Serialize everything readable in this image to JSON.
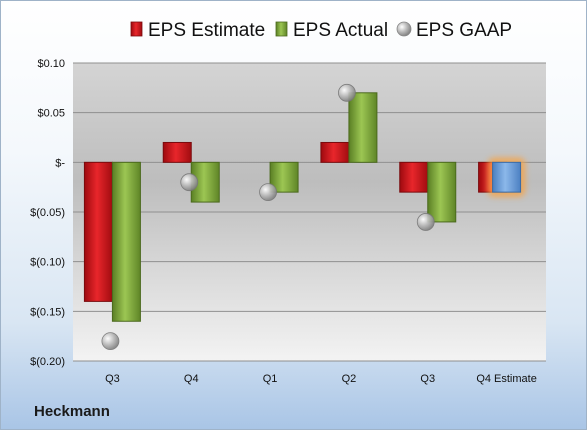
{
  "company": "Heckmann",
  "chart_data": {
    "type": "bar",
    "categories": [
      "Q3",
      "Q4",
      "Q1",
      "Q2",
      "Q3",
      "Q4 Estimate"
    ],
    "series": [
      {
        "name": "EPS Estimate",
        "values": [
          -0.14,
          0.02,
          null,
          0.02,
          -0.03,
          -0.03
        ],
        "color": "#d7161c"
      },
      {
        "name": "EPS Actual",
        "values": [
          -0.16,
          -0.04,
          -0.03,
          0.07,
          -0.06,
          null
        ],
        "color": "#7aa63a"
      },
      {
        "name": "EPS GAAP",
        "type": "scatter",
        "values": [
          -0.18,
          -0.02,
          -0.03,
          0.07,
          -0.06,
          null
        ],
        "color": "#a8a8a8"
      }
    ],
    "estimate_highlight": {
      "category": "Q4 Estimate",
      "value": -0.03,
      "color": "#6a9fd8",
      "glow": "#f5a44a"
    },
    "yticks": [
      0.1,
      0.05,
      0,
      -0.05,
      -0.1,
      -0.15,
      -0.2
    ],
    "ytick_labels": [
      "$0.10",
      "$0.05",
      "$-",
      "$(0.05)",
      "$(0.10)",
      "$(0.15)",
      "$(0.20)"
    ],
    "ylim": [
      -0.2,
      0.1
    ],
    "grid": true,
    "legend": "top"
  }
}
